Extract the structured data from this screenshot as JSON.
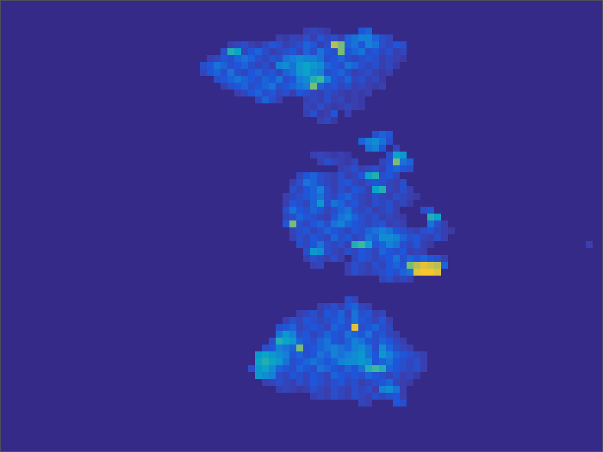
{
  "chart_data": {
    "type": "heatmap",
    "tick_labels": false,
    "xlim": [
      0,
      87.5
    ],
    "ylim": [
      0,
      65.6
    ],
    "color_range": [
      0,
      1
    ],
    "cells": [
      {
        "row": 4,
        "col": 44,
        "values": [
          0.2,
          0.25,
          0.2,
          0.15,
          0,
          0,
          0,
          0,
          0.35,
          0.4
        ]
      },
      {
        "row": 5,
        "col": 40,
        "values": [
          0.2,
          0.15,
          0.25,
          0.2,
          0.3,
          0.2,
          0.35,
          0.25,
          0.3,
          0.2,
          0.4,
          0.45,
          0.5,
          0.5,
          0.4,
          0.3,
          0.25
        ]
      },
      {
        "row": 6,
        "col": 33,
        "values": [
          0.2,
          0.25,
          0.3,
          0.2,
          0.15,
          0.25,
          0.35,
          0.3,
          0.2,
          0.25,
          0.3,
          0.4,
          0.35,
          0.2,
          0.3,
          0.85,
          0.8,
          0.4,
          0.45,
          0.35,
          0.5,
          0.45,
          0.3,
          0.25,
          0.35,
          0.3
        ]
      },
      {
        "row": 7,
        "col": 32,
        "values": [
          0.3,
          0.7,
          0.65,
          0.25,
          0.35,
          0.4,
          0.3,
          0.2,
          0.25,
          0.3,
          0.35,
          0.25,
          0.4,
          0.3,
          0.45,
          0.35,
          0.3,
          0.8,
          0.35,
          0.4,
          0.45,
          0.3,
          0.35,
          0.25,
          0.3,
          0.2,
          0.25
        ]
      },
      {
        "row": 8,
        "col": 30,
        "values": [
          0.2,
          0.25,
          0.35,
          0.3,
          0.4,
          0.45,
          0.4,
          0.3,
          0.25,
          0.35,
          0.3,
          0.45,
          0.5,
          0.55,
          0.5,
          0.5,
          0.45,
          0.3,
          0.35,
          0.4,
          0.3,
          0.25,
          0.3,
          0.35,
          0.3,
          0.2,
          0.25,
          0.2,
          0.15
        ]
      },
      {
        "row": 9,
        "col": 29,
        "values": [
          0.3,
          0.35,
          0.45,
          0.4,
          0.3,
          0.35,
          0.4,
          0.3,
          0.25,
          0.3,
          0.2,
          0.5,
          0.55,
          0.45,
          0.6,
          0.65,
          0.6,
          0.55,
          0.4,
          0.35,
          0.3,
          0.45,
          0.4,
          0.3,
          0.25,
          0.3,
          0.2,
          0.25,
          0.15
        ]
      },
      {
        "row": 10,
        "col": 29,
        "values": [
          0.25,
          0.35,
          0.4,
          0.3,
          0.45,
          0.3,
          0.25,
          0.35,
          0.4,
          0.3,
          0.35,
          0.25,
          0.4,
          0.45,
          0.6,
          0.65,
          0.55,
          0.5,
          0.3,
          0.35,
          0.4,
          0.3,
          0.2,
          0.25,
          0.3,
          0.2,
          0.15,
          0.2
        ]
      },
      {
        "row": 11,
        "col": 31,
        "values": [
          0.3,
          0.35,
          0.4,
          0.45,
          0.4,
          0.35,
          0.3,
          0.4,
          0.35,
          0.45,
          0.3,
          0.35,
          0.5,
          0.55,
          0.7,
          0.75,
          0.5,
          0.35,
          0.3,
          0.4,
          0.25,
          0.3,
          0.2,
          0.25,
          0.15
        ]
      },
      {
        "row": 12,
        "col": 32,
        "values": [
          0.2,
          0.3,
          0.35,
          0.4,
          0.3,
          0.35,
          0.4,
          0.45,
          0.3,
          0.35,
          0.4,
          0.45,
          0.5,
          0.8,
          0.4,
          0.3,
          0.35,
          0.25,
          0.3,
          0.2,
          0.25,
          0.2,
          0.15,
          0.2
        ]
      },
      {
        "row": 13,
        "col": 34,
        "values": [
          0.2,
          0.25,
          0.35,
          0.4,
          0.3,
          0.35,
          0.25,
          0.3,
          0.2,
          0.35,
          0.3,
          0.25,
          0.2,
          0.3,
          0.25,
          0.2,
          0.15,
          0.2,
          0.15,
          0.2
        ]
      },
      {
        "row": 14,
        "col": 37,
        "values": [
          0.25,
          0.4,
          0.3,
          0.2,
          0,
          0,
          0,
          0.2,
          0.25,
          0.2,
          0.3,
          0.2,
          0.25,
          0.15,
          0.2,
          0.15
        ]
      },
      {
        "row": 15,
        "col": 44,
        "values": [
          0.25,
          0.2,
          0.3,
          0.2,
          0.15,
          0.2,
          0.25,
          0.2,
          0.15
        ]
      },
      {
        "row": 16,
        "col": 44,
        "values": [
          0.2,
          0.3,
          0.15,
          0.2,
          0.35,
          0,
          0.2
        ]
      },
      {
        "row": 17,
        "col": 46,
        "values": [
          0.2,
          0.25,
          0.15
        ]
      },
      {
        "row": 19,
        "col": 54,
        "values": [
          0.3,
          0.4,
          0.35
        ]
      },
      {
        "row": 20,
        "col": 52,
        "values": [
          0.4,
          0.5,
          0.55,
          0.45,
          0.3
        ]
      },
      {
        "row": 21,
        "col": 53,
        "values": [
          0.45,
          0.5,
          0.35,
          0,
          0.25
        ]
      },
      {
        "row": 22,
        "col": 45,
        "values": [
          0.2,
          0.25,
          0.2,
          0.15,
          0.2,
          0.15,
          0,
          0,
          0,
          0,
          0,
          0.3,
          0.65,
          0.6
        ]
      },
      {
        "row": 23,
        "col": 46,
        "values": [
          0.2,
          0.3,
          0.25,
          0.2,
          0.15,
          0.25,
          0,
          0,
          0,
          0.25,
          0.3,
          0.8,
          0.45,
          0.4
        ]
      },
      {
        "row": 24,
        "col": 49,
        "values": [
          0.2,
          0.25,
          0.3,
          0.2,
          0.25,
          0.3,
          0.2,
          0.35,
          0.4,
          0.35,
          0.3
        ]
      },
      {
        "row": 25,
        "col": 43,
        "values": [
          0.25,
          0.35,
          0.4,
          0.3,
          0.25,
          0.2,
          0.3,
          0.2,
          0.25,
          0.35,
          0.65,
          0.7,
          0.3,
          0.35,
          0.25
        ]
      },
      {
        "row": 26,
        "col": 42,
        "values": [
          0.2,
          0.3,
          0.45,
          0.4,
          0.3,
          0.25,
          0.2,
          0.3,
          0.35,
          0.25,
          0.2,
          0.3,
          0.35,
          0.3,
          0.25,
          0.2,
          0.3
        ]
      },
      {
        "row": 27,
        "col": 42,
        "values": [
          0.3,
          0.25,
          0.35,
          0.4,
          0.5,
          0.3,
          0.2,
          0.3,
          0.25,
          0.35,
          0.3,
          0.2,
          0.65,
          0.7,
          0.25,
          0.2,
          0.3,
          0.2
        ]
      },
      {
        "row": 28,
        "col": 41,
        "values": [
          0.2,
          0.25,
          0.3,
          0.35,
          0.4,
          0.45,
          0.3,
          0.25,
          0.35,
          0.4,
          0.3,
          0.25,
          0.2,
          0.3,
          0.25,
          0.2,
          0.3,
          0.25,
          0.2,
          0.15
        ]
      },
      {
        "row": 29,
        "col": 41,
        "values": [
          0.2,
          0.35,
          0.3,
          0.25,
          0.4,
          0.6,
          0.3,
          0.45,
          0.4,
          0.3,
          0.35,
          0.25,
          0.2,
          0.3,
          0.25,
          0.3,
          0.2,
          0.25,
          0.15
        ]
      },
      {
        "row": 30,
        "col": 41,
        "values": [
          0.3,
          0.45,
          0.35,
          0.3,
          0.4,
          0.35,
          0.25,
          0.3,
          0.4,
          0.45,
          0.3,
          0.25,
          0.3,
          0.2,
          0.25,
          0.3,
          0.2,
          0,
          0,
          0,
          0.3,
          0.35
        ]
      },
      {
        "row": 31,
        "col": 41,
        "values": [
          0.25,
          0.3,
          0.4,
          0.35,
          0.3,
          0.25,
          0.2,
          0.35,
          0.45,
          0.5,
          0.4,
          0.3,
          0.25,
          0.3,
          0.2,
          0.25,
          0.2,
          0.15,
          0,
          0,
          0,
          0.7,
          0.65
        ]
      },
      {
        "row": 32,
        "col": 41,
        "values": [
          0.35,
          0.8,
          0.3,
          0.25,
          0.35,
          0.4,
          0.3,
          0.45,
          0.5,
          0.4,
          0.35,
          0.3,
          0.25,
          0.3,
          0.35,
          0.2,
          0.25,
          0.2,
          0,
          0,
          0,
          0.45,
          0.3,
          0.2
        ]
      },
      {
        "row": 33,
        "col": 42,
        "values": [
          0.25,
          0.3,
          0.35,
          0.25,
          0.3,
          0.4,
          0.35,
          0.3,
          0.25,
          0.35,
          0.3,
          0.4,
          0.45,
          0.5,
          0.45,
          0.35,
          0.3,
          0.25,
          0.2,
          0.3,
          0.35,
          0.25,
          0.2,
          0.15
        ]
      },
      {
        "row": 34,
        "col": 42,
        "values": [
          0.2,
          0.3,
          0.25,
          0.35,
          0.3,
          0.25,
          0.4,
          0.3,
          0.35,
          0.25,
          0.3,
          0.45,
          0.4,
          0.55,
          0.55,
          0.5,
          0.4,
          0.3,
          0.35,
          0.25,
          0.2,
          0.3,
          0.2
        ]
      },
      {
        "row": 35,
        "col": 43,
        "values": [
          0.3,
          0.25,
          0.35,
          0.45,
          0.3,
          0.25,
          0.3,
          0.2,
          0.7,
          0.75,
          0.65,
          0.35,
          0.4,
          0.5,
          0.45,
          0.3,
          0.25,
          0.35,
          0.2,
          0.15
        ]
      },
      {
        "row": 35,
        "col": 85,
        "values": [
          0.2
        ]
      },
      {
        "row": 36,
        "col": 44,
        "values": [
          0.3,
          0.6,
          0.55,
          0.3,
          0.25,
          0.2,
          0.3,
          0.25,
          0.35,
          0.3,
          0.25,
          0.4,
          0.35,
          0.3,
          0.35,
          0.2,
          0.25,
          0.2
        ]
      },
      {
        "row": 37,
        "col": 44,
        "values": [
          0.2,
          0.3,
          0.25,
          0.2,
          0.3,
          0.2,
          0,
          0.25,
          0.35,
          0.3,
          0.25,
          0.3,
          0.35,
          0.45,
          0.3,
          0.4,
          0.35,
          0.4,
          0.35,
          0.3,
          0.2
        ]
      },
      {
        "row": 38,
        "col": 45,
        "values": [
          0.2,
          0.25,
          0,
          0,
          0,
          0.2,
          0.3,
          0.25,
          0.2,
          0.3,
          0.25,
          0.35,
          0.4,
          0.35,
          0.8,
          0.85,
          0.95,
          0.9,
          0.85,
          0.4
        ]
      },
      {
        "row": 39,
        "col": 50,
        "values": [
          0.2,
          0.3,
          0.25,
          0.2,
          0.25,
          0.3,
          0.35,
          0.3,
          0.4,
          0.45,
          0.95,
          1,
          1,
          0.95
        ]
      },
      {
        "row": 40,
        "col": 55,
        "values": [
          0.25,
          0.3,
          0.2,
          0.25,
          0.2
        ]
      },
      {
        "row": 43,
        "col": 50,
        "values": [
          0.3,
          0.25
        ]
      },
      {
        "row": 44,
        "col": 46,
        "values": [
          0.2,
          0.25,
          0.3,
          0.2,
          0.35,
          0.4,
          0.25,
          0.2
        ]
      },
      {
        "row": 45,
        "col": 43,
        "values": [
          0.2,
          0.25,
          0.3,
          0.2,
          0.35,
          0.3,
          0.4,
          0.25,
          0.45,
          0.3,
          0.35,
          0.2,
          0.25
        ]
      },
      {
        "row": 46,
        "col": 41,
        "values": [
          0.2,
          0.3,
          0.25,
          0.35,
          0.3,
          0.25,
          0.3,
          0.35,
          0.4,
          0.3,
          0.45,
          0.35,
          0.3,
          0.25,
          0.35,
          0.2
        ]
      },
      {
        "row": 47,
        "col": 40,
        "values": [
          0.3,
          0.35,
          0.4,
          0.25,
          0.3,
          0.35,
          0.3,
          0.25,
          0.4,
          0.35,
          0.3,
          0.95,
          0.3,
          0.35,
          0.4,
          0.3,
          0.25
        ]
      },
      {
        "row": 48,
        "col": 40,
        "values": [
          0.45,
          0.6,
          0.5,
          0.3,
          0.35,
          0.25,
          0.3,
          0.4,
          0.35,
          0.3,
          0.45,
          0.4,
          0.35,
          0.45,
          0.3,
          0.35,
          0.25,
          0.2
        ]
      },
      {
        "row": 49,
        "col": 39,
        "values": [
          0.3,
          0.7,
          0.65,
          0.6,
          0.4,
          0.35,
          0.3,
          0.4,
          0.45,
          0.35,
          0.3,
          0.4,
          0.5,
          0.45,
          0.35,
          0.3,
          0.4,
          0.35,
          0.25,
          0.2
        ]
      },
      {
        "row": 50,
        "col": 38,
        "values": [
          0.3,
          0.35,
          0.5,
          0.45,
          0.4,
          0.8,
          0.3,
          0.35,
          0.4,
          0.45,
          0.5,
          0.45,
          0.4,
          0.5,
          0.55,
          0.45,
          0.3,
          0.55,
          0.4,
          0.3,
          0.25,
          0.2
        ]
      },
      {
        "row": 51,
        "col": 37,
        "values": [
          0.6,
          0.65,
          0.6,
          0.55,
          0.5,
          0.35,
          0.4,
          0.3,
          0.35,
          0.45,
          0.4,
          0.5,
          0.45,
          0.5,
          0.55,
          0.6,
          0.45,
          0.35,
          0.6,
          0.5,
          0.4,
          0.35,
          0.3,
          0.25,
          0.2
        ]
      },
      {
        "row": 52,
        "col": 37,
        "values": [
          0.65,
          0.7,
          0.65,
          0.6,
          0.45,
          0.3,
          0.35,
          0.4,
          0.45,
          0.4,
          0.35,
          0.4,
          0.5,
          0.55,
          0.55,
          0.6,
          0.55,
          0.35,
          0.4,
          0.45,
          0.35,
          0.3,
          0.25,
          0.3,
          0.2
        ]
      },
      {
        "row": 53,
        "col": 36,
        "values": [
          0.3,
          0.6,
          0.65,
          0.55,
          0.4,
          0.35,
          0.3,
          0.4,
          0.35,
          0.3,
          0.45,
          0.4,
          0.35,
          0.3,
          0.4,
          0.35,
          0.45,
          0.7,
          0.75,
          0.7,
          0.4,
          0.35,
          0.3,
          0.25,
          0.3,
          0.2
        ]
      },
      {
        "row": 54,
        "col": 37,
        "values": [
          0.6,
          0.55,
          0.5,
          0.3,
          0.25,
          0.35,
          0.3,
          0.25,
          0.35,
          0.3,
          0.25,
          0.4,
          0.35,
          0.3,
          0.35,
          0.3,
          0.4,
          0.35,
          0.3,
          0.25,
          0.3,
          0.2,
          0.25,
          0.15
        ]
      },
      {
        "row": 55,
        "col": 38,
        "values": [
          0.2,
          0.25,
          0.3,
          0.25,
          0.2,
          0.3,
          0.25,
          0.35,
          0.3,
          0.25,
          0.3,
          0.35,
          0.25,
          0.3,
          0.2,
          0.25,
          0.3,
          0.35,
          0.4,
          0.25,
          0.2,
          0.15
        ]
      },
      {
        "row": 56,
        "col": 40,
        "values": [
          0.2,
          0.25,
          0.2,
          0.15,
          0.2,
          0.3,
          0.25,
          0.2,
          0.3,
          0.25,
          0.2,
          0.3,
          0.25,
          0.3,
          0.2,
          0.5,
          0.55,
          0.45,
          0.2
        ]
      },
      {
        "row": 57,
        "col": 45,
        "values": [
          0.2,
          0.25,
          0.2,
          0.3,
          0.25,
          0.2,
          0.3,
          0.25,
          0.2,
          0.3,
          0.25,
          0.3,
          0.35,
          0.2
        ]
      },
      {
        "row": 58,
        "col": 52,
        "values": [
          0.25,
          0.2,
          0,
          0,
          0,
          0.35,
          0.3
        ]
      }
    ]
  }
}
